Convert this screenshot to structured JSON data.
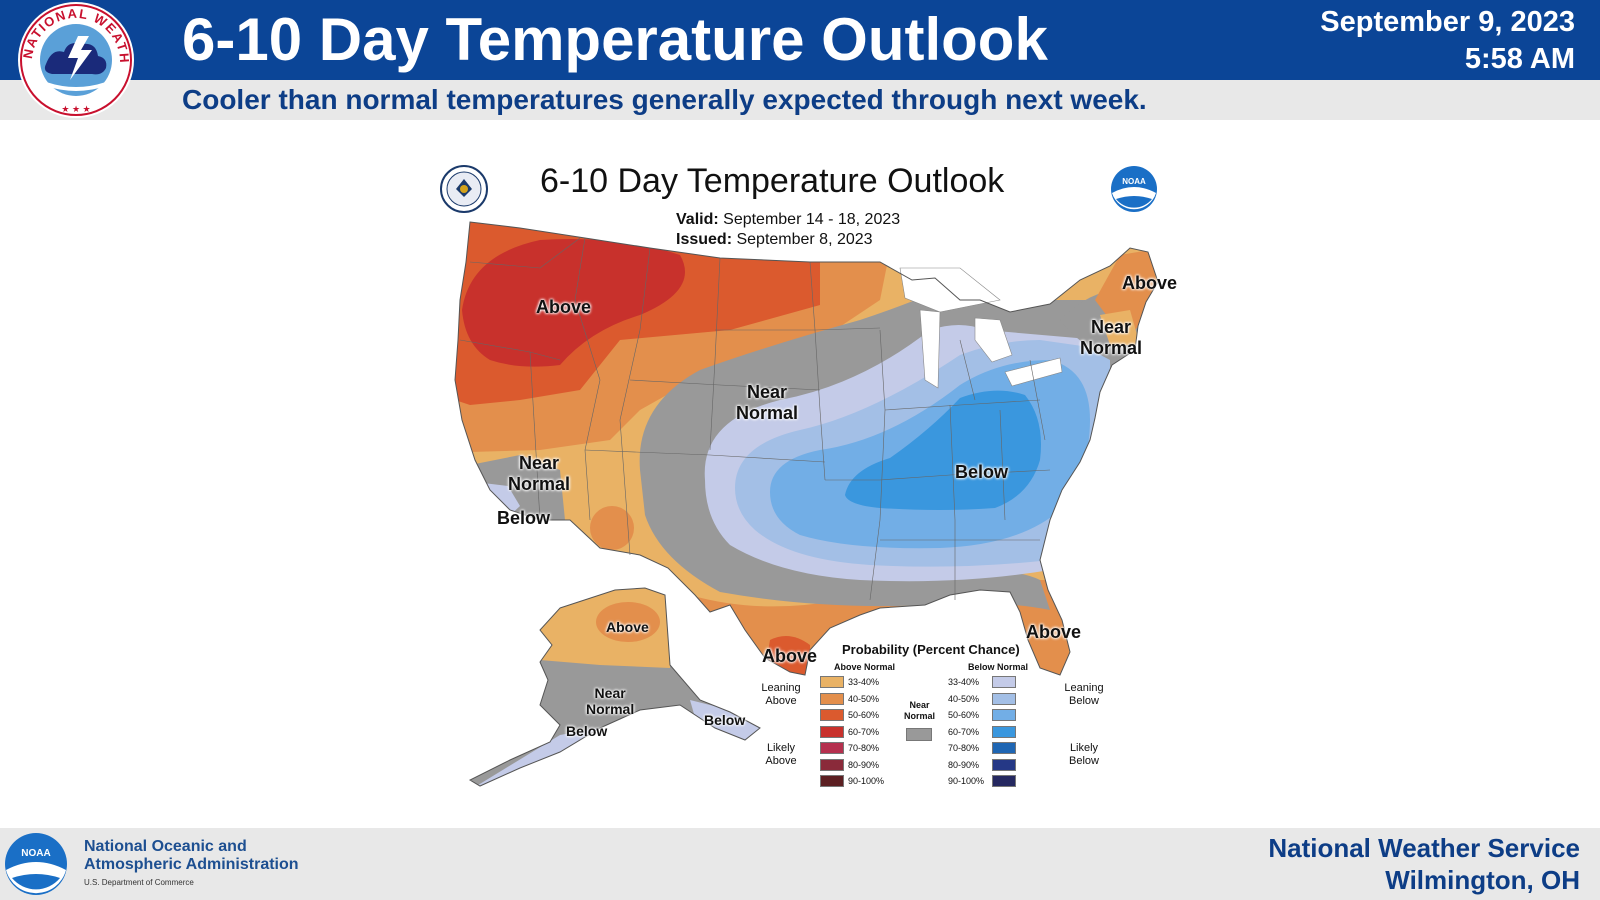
{
  "header": {
    "title": "6-10 Day Temperature Outlook",
    "subtitle": "Cooler than normal temperatures generally expected through next week.",
    "date": "September 9, 2023",
    "time": "5:58 AM",
    "logo_text": "NATIONAL WEATHER SERVICE"
  },
  "map": {
    "title": "6-10 Day Temperature Outlook",
    "valid_label": "Valid:",
    "valid_value": "September 14 - 18, 2023",
    "issued_label": "Issued:",
    "issued_value": "September 8, 2023",
    "noaa_mark": "NOAA",
    "labels": {
      "northwest": "Above",
      "northern_plains": [
        "Near",
        "Normal"
      ],
      "california_near": [
        "Near",
        "Normal"
      ],
      "california_below": "Below",
      "east": "Below",
      "new_england_near": [
        "Near",
        "Normal"
      ],
      "maine": "Above",
      "texas": "Above",
      "florida": "Above",
      "alaska_north": "Above",
      "alaska_near": [
        "Near",
        "Normal"
      ],
      "alaska_below_west": "Below",
      "alaska_below_panhandle": "Below"
    }
  },
  "legend": {
    "title": "Probability (Percent Chance)",
    "above_header": "Above Normal",
    "below_header": "Below Normal",
    "near_normal": [
      "Near",
      "Normal"
    ],
    "leaning_above": [
      "Leaning",
      "Above"
    ],
    "likely_above": [
      "Likely",
      "Above"
    ],
    "leaning_below": [
      "Leaning",
      "Below"
    ],
    "likely_below": [
      "Likely",
      "Below"
    ],
    "above": [
      {
        "range": "33-40%",
        "color": "#e9b265"
      },
      {
        "range": "40-50%",
        "color": "#e38f4c"
      },
      {
        "range": "50-60%",
        "color": "#db5a2e"
      },
      {
        "range": "60-70%",
        "color": "#c8312c"
      },
      {
        "range": "70-80%",
        "color": "#b5304e"
      },
      {
        "range": "80-90%",
        "color": "#8a2a3a"
      },
      {
        "range": "90-100%",
        "color": "#5c1f22"
      }
    ],
    "below": [
      {
        "range": "33-40%",
        "color": "#c4cbe8"
      },
      {
        "range": "40-50%",
        "color": "#a3bfe6"
      },
      {
        "range": "50-60%",
        "color": "#72aee6"
      },
      {
        "range": "60-70%",
        "color": "#3a97de"
      },
      {
        "range": "70-80%",
        "color": "#1f66b3"
      },
      {
        "range": "80-90%",
        "color": "#253886"
      },
      {
        "range": "90-100%",
        "color": "#252860"
      }
    ],
    "near_color": "#999999"
  },
  "footer": {
    "agency_line1": "National Oceanic and",
    "agency_line2": "Atmospheric Administration",
    "dept": "U.S. Department of Commerce",
    "nws_line1": "National Weather Service",
    "nws_line2": "Wilmington, OH",
    "noaa_mark": "NOAA"
  },
  "colors": {
    "header_blue": "#0b4597",
    "subtitle_blue": "#0d3d86",
    "band_gray": "#e8e8e8"
  }
}
